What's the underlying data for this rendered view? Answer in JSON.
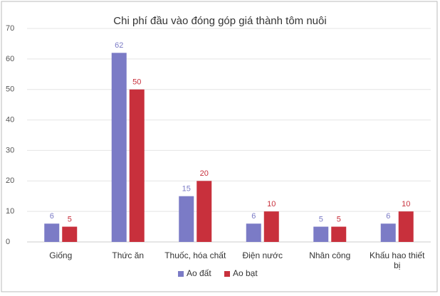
{
  "chart_data": {
    "type": "bar",
    "title": "Chi phí đầu vào đóng góp giá thành tôm nuôi",
    "categories": [
      "Giống",
      "Thức ăn",
      "Thuốc, hóa chất",
      "Điện nước",
      "Nhân công",
      "Khấu hao thiết bị"
    ],
    "series": [
      {
        "name": "Ao đất",
        "color": "#7b7bc6",
        "values": [
          6,
          62,
          15,
          6,
          5,
          6
        ]
      },
      {
        "name": "Ao bạt",
        "color": "#c8303c",
        "values": [
          5,
          50,
          20,
          10,
          5,
          10
        ]
      }
    ],
    "ylim": [
      0,
      70
    ],
    "yticks": [
      0,
      10,
      20,
      30,
      40,
      50,
      60,
      70
    ],
    "grid": true,
    "legend": "bottom"
  }
}
